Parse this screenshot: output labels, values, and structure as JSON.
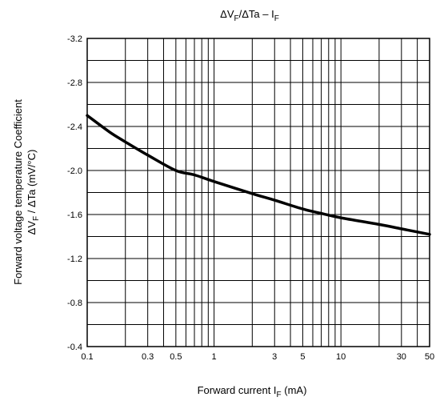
{
  "chart_data": {
    "type": "line",
    "title": {
      "main": "ΔV",
      "sub1": "F",
      "mid": "/ΔTa – I",
      "sub2": "F"
    },
    "xlabel": {
      "pre": "Forward current   I",
      "sub": "F",
      "post": "   (mA)"
    },
    "ylabel": {
      "line1": "Forward voltage temperature Coefficient",
      "line2_pre": "ΔV",
      "line2_sub": "F",
      "line2_post": " /  ΔTa   (mV/°C)"
    },
    "x_scale": "log",
    "xlim": [
      0.1,
      50
    ],
    "ylim": [
      -0.4,
      -3.2
    ],
    "y_ticks": [
      "-3.2",
      "-2.8",
      "-2.4",
      "-2.0",
      "-1.6",
      "-1.2",
      "-0.8",
      "-0.4"
    ],
    "y_tick_values": [
      -3.2,
      -2.8,
      -2.4,
      -2.0,
      -1.6,
      -1.2,
      -0.8,
      -0.4
    ],
    "x_ticks": [
      "0.1",
      "0.3",
      "0.5",
      "1",
      "3",
      "5",
      "10",
      "30",
      "50"
    ],
    "x_tick_values": [
      0.1,
      0.3,
      0.5,
      1,
      3,
      5,
      10,
      30,
      50
    ],
    "grid": true,
    "series": [
      {
        "x": [
          0.1,
          0.15,
          0.2,
          0.3,
          0.5,
          0.7,
          1,
          2,
          3,
          5,
          7,
          10,
          20,
          30,
          50
        ],
        "y": [
          -2.5,
          -2.35,
          -2.26,
          -2.14,
          -2.0,
          -1.96,
          -1.9,
          -1.79,
          -1.73,
          -1.65,
          -1.61,
          -1.57,
          -1.51,
          -1.47,
          -1.42
        ]
      }
    ]
  }
}
